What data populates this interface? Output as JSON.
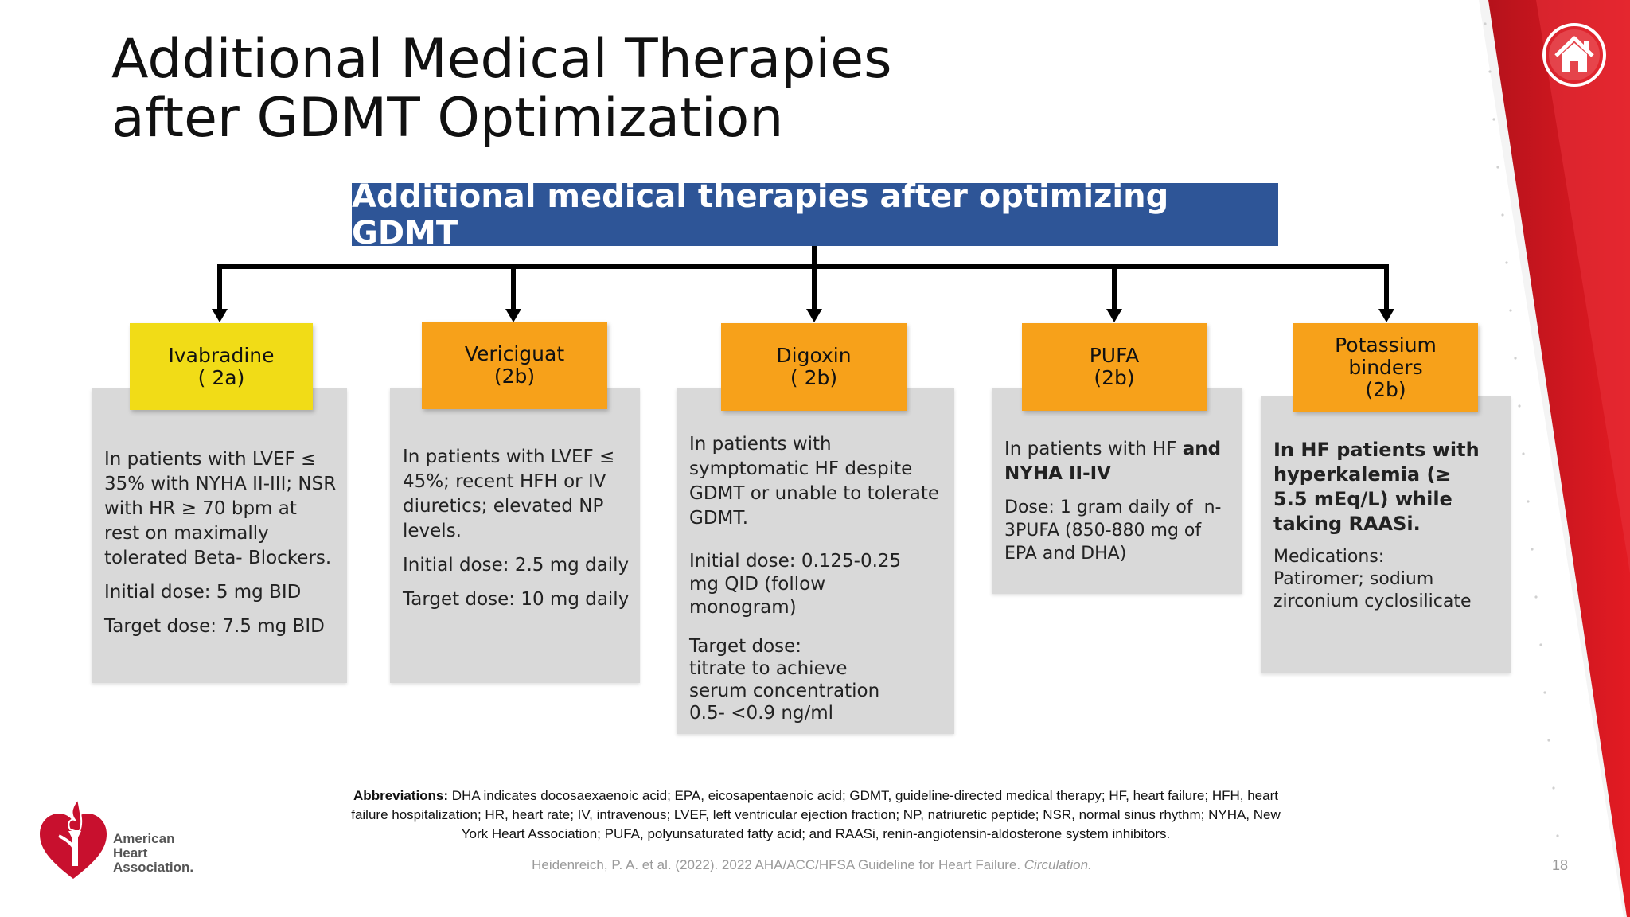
{
  "title": {
    "line1": "Additional Medical Therapies",
    "line2": "after GDMT Optimization"
  },
  "header_box": "Additional medical therapies after optimizing GDMT",
  "colors": {
    "header_blue": "#2e5597",
    "orange": "#f7a11a",
    "yellow": "#f1dc17",
    "card_gray": "#d9d9d9",
    "brand_red": "#e31b23"
  },
  "therapies": [
    {
      "name": "Ivabradine",
      "class": "( 2a)",
      "description": "In patients with LVEF ≤ 35% with NYHA II-III; NSR with HR ≥ 70 bpm at rest on maximally tolerated Beta- Blockers.",
      "initial_dose": "Initial dose: 5 mg BID",
      "target_dose": "Target dose: 7.5 mg BID"
    },
    {
      "name": "Vericiguat",
      "class": "(2b)",
      "description": "In patients with LVEF ≤ 45%; recent HFH or IV diuretics; elevated NP levels.",
      "initial_dose": "Initial dose: 2.5 mg daily",
      "target_dose": "Target dose: 10 mg daily"
    },
    {
      "name": "Digoxin",
      "class": "( 2b)",
      "description": "In patients with symptomatic HF despite GDMT or unable to tolerate GDMT.",
      "initial_dose": "Initial dose: 0.125-0.25 mg QID (follow monogram)",
      "target_dose_label": "Target dose:",
      "target_dose": "titrate to achieve serum concentration 0.5- <0.9 ng/ml"
    },
    {
      "name": "PUFA",
      "class": "(2b)",
      "description_pre": "In patients with HF",
      "description_bold": "and NYHA II-IV",
      "dose": "Dose: 1 gram daily of  n-3PUFA (850-880 mg of EPA and DHA)"
    },
    {
      "name_line1": "Potassium",
      "name_line2": "binders",
      "class": "(2b)",
      "description": "In HF patients with hyperkalemia (≥ 5.5 mEq/L) while taking RAASi.",
      "medications": "Medications: Patiromer; sodium zirconium cyclosilicate"
    }
  ],
  "abbreviations": {
    "label": "Abbreviations:",
    "text": "DHA indicates docosaexaenoic acid; EPA, eicosapentaenoic acid; GDMT, guideline-directed medical therapy; HF, heart failure; HFH, heart failure hospitalization; HR, heart rate; IV, intravenous;  LVEF, left ventricular ejection fraction; NP, natriuretic peptide; NSR, normal sinus rhythm; NYHA, New York Heart Association; PUFA, polyunsaturated fatty acid; and RAASi, renin-angiotensin-aldosterone system inhibitors."
  },
  "citation": {
    "text": "Heidenreich, P. A. et al. (2022). 2022 AHA/ACC/HFSA Guideline for Heart Failure.",
    "journal": "Circulation."
  },
  "page_number": "18",
  "logo": {
    "line1": "American",
    "line2": "Heart",
    "line3": "Association."
  },
  "icons": {
    "home": "home-icon",
    "logo": "aha-heart-torch-logo"
  }
}
